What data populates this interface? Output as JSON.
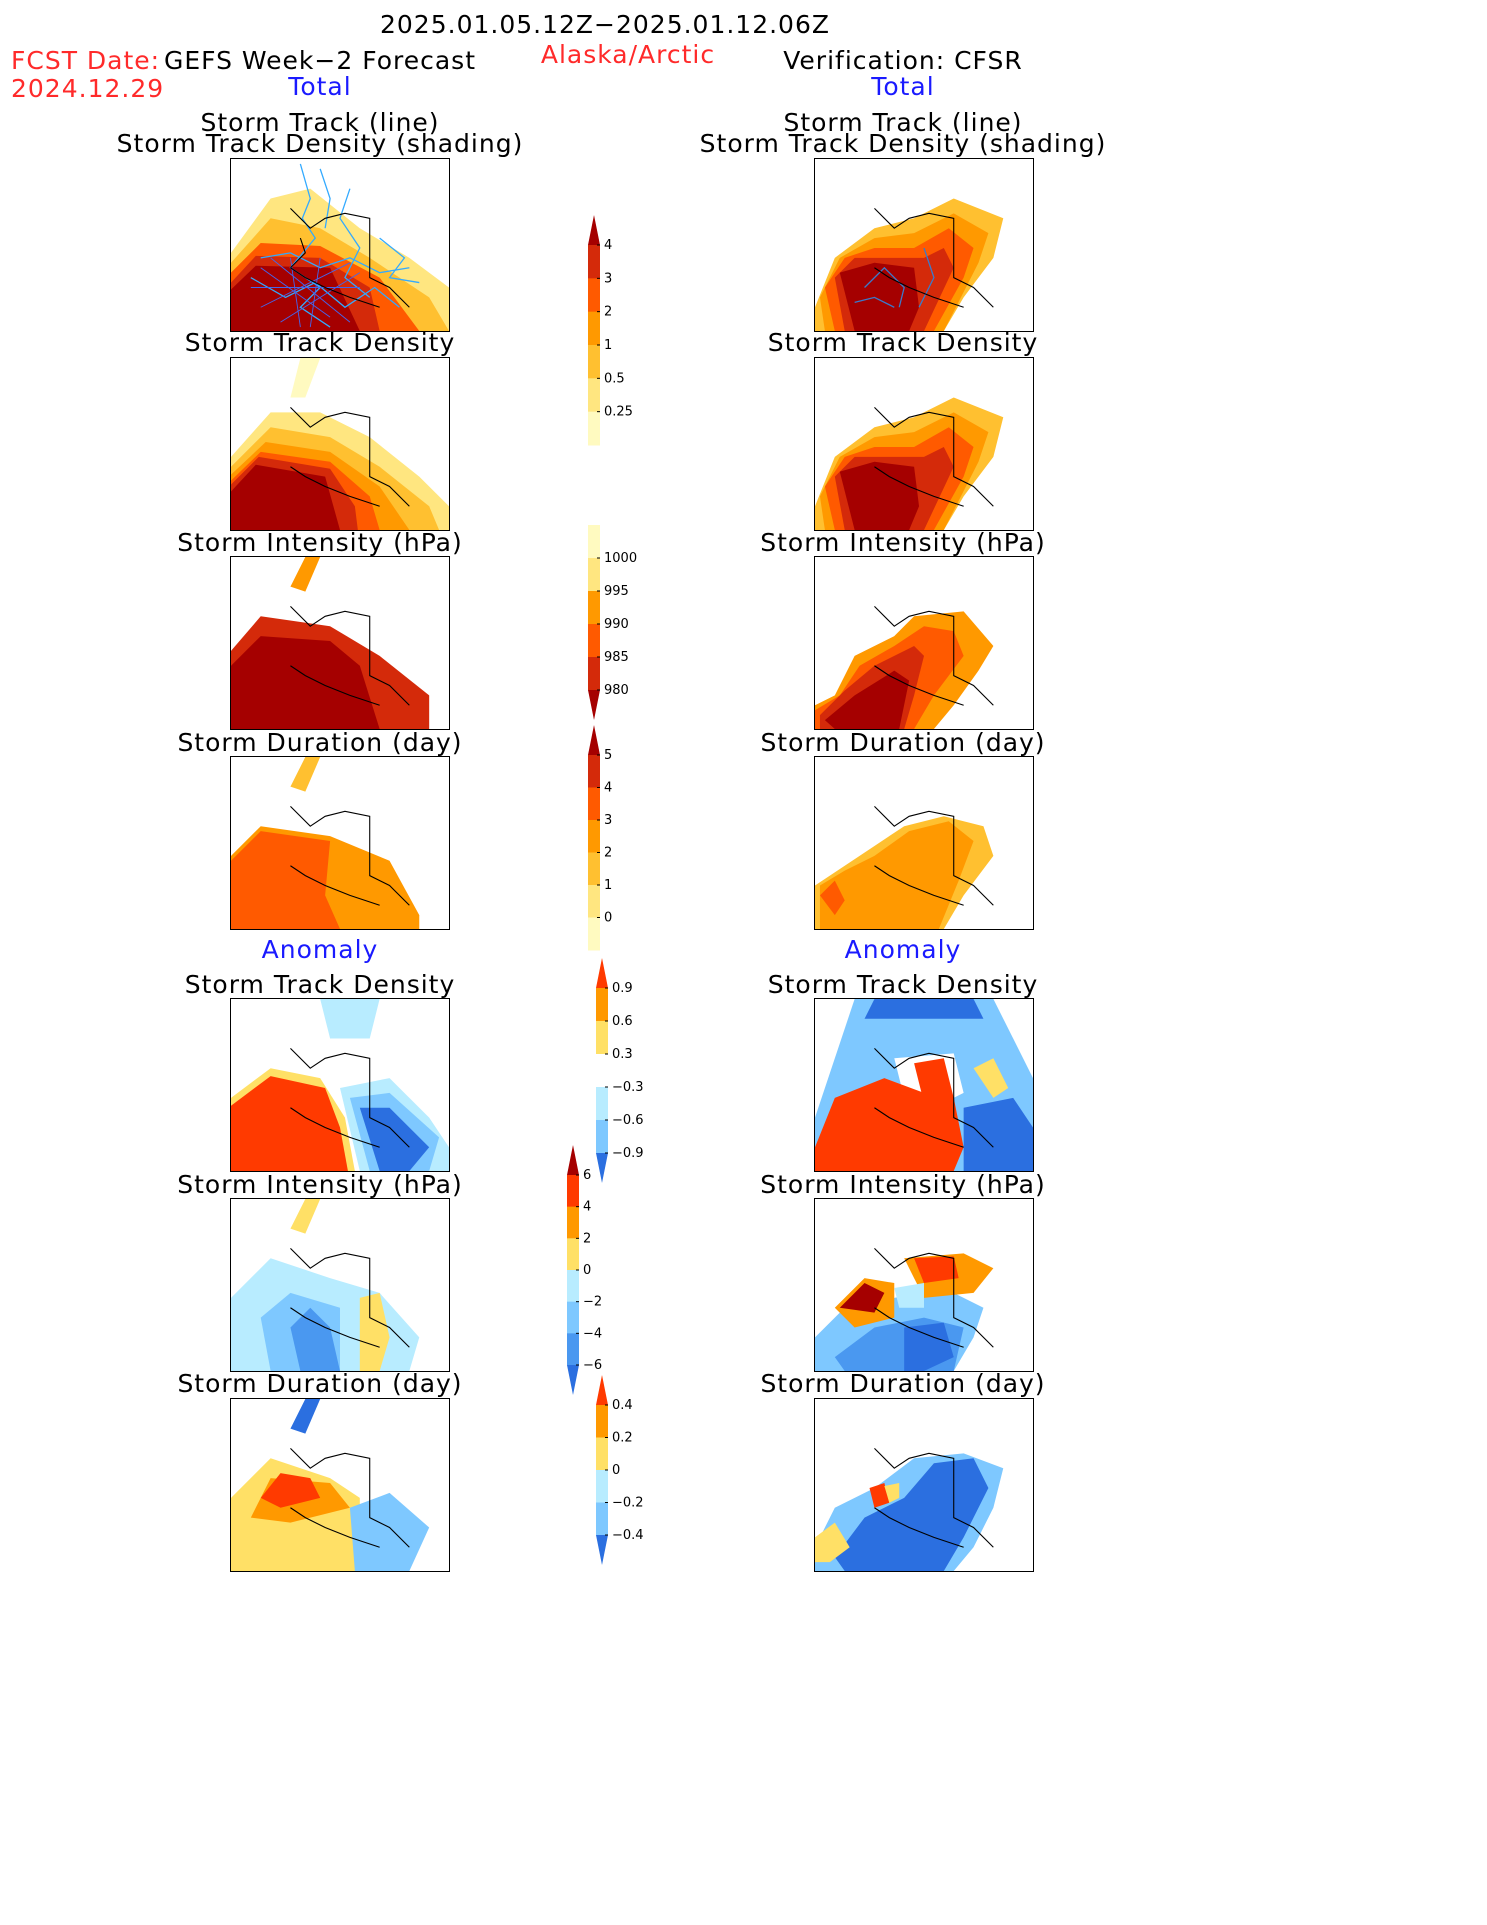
{
  "header": {
    "date_range": "2025.01.05.12Z−2025.01.12.06Z",
    "fcst_label": "FCST Date:",
    "fcst_date": "2024.12.29",
    "left_title": "GEFS Week−2 Forecast",
    "region": "Alaska/Arctic",
    "right_title": "Verification: CFSR",
    "left_total": "Total",
    "right_total": "Total",
    "left_anomaly": "Anomaly",
    "right_anomaly": "Anomaly"
  },
  "panels": {
    "track_line_1": "Storm Track (line)",
    "track_line_2": "Storm Track Density (shading)",
    "density": "Storm Track Density",
    "intensity": "Storm Intensity (hPa)",
    "duration": "Storm Duration (day)"
  },
  "colorbars": {
    "density_total": {
      "labels": [
        "4",
        "3",
        "2",
        "1",
        "0.5",
        "0.25"
      ],
      "colors": [
        "#a50000",
        "#d42a0a",
        "#ff5a00",
        "#ff9900",
        "#ffc030",
        "#ffe680",
        "#fffac0"
      ]
    },
    "intensity_total": {
      "labels": [
        "1000",
        "995",
        "990",
        "985",
        "980"
      ],
      "colors": [
        "#fffac0",
        "#ffe680",
        "#ff9900",
        "#ff5a00",
        "#d42a0a",
        "#a50000"
      ]
    },
    "duration_total": {
      "labels": [
        "5",
        "4",
        "3",
        "2",
        "1",
        "0"
      ],
      "colors": [
        "#a50000",
        "#d42a0a",
        "#ff5a00",
        "#ff9900",
        "#ffc030",
        "#ffe680",
        "#fffac0"
      ]
    },
    "density_anom": {
      "labels": [
        "0.9",
        "0.6",
        "0.3",
        "−0.3",
        "−0.6",
        "−0.9"
      ],
      "colors": [
        "#ff3a00",
        "#ff9900",
        "#ffe066",
        "#ffffff",
        "#b8ecff",
        "#7ec8ff",
        "#2b6fe0"
      ]
    },
    "intensity_anom": {
      "labels": [
        "6",
        "4",
        "2",
        "0",
        "−2",
        "−4",
        "−6"
      ],
      "colors": [
        "#a50000",
        "#ff3a00",
        "#ff9900",
        "#ffe066",
        "#b8ecff",
        "#7ec8ff",
        "#4a98f0",
        "#2b6fe0"
      ]
    },
    "duration_anom": {
      "labels": [
        "0.4",
        "0.2",
        "0",
        "−0.2",
        "−0.4"
      ],
      "colors": [
        "#ff3a00",
        "#ff9900",
        "#ffe066",
        "#b8ecff",
        "#7ec8ff",
        "#2b6fe0"
      ]
    }
  },
  "palette": {
    "dark_red": "#a50000",
    "red": "#d42a0a",
    "orange_red": "#ff5a00",
    "orange": "#ff9900",
    "gold": "#ffc030",
    "yellow": "#ffe680",
    "light_blue": "#b8ecff",
    "mid_blue": "#7ec8ff",
    "blue": "#2b6fe0",
    "track_line_gefs": "#33aaff",
    "track_line_cfsr": "#3a7acc"
  }
}
